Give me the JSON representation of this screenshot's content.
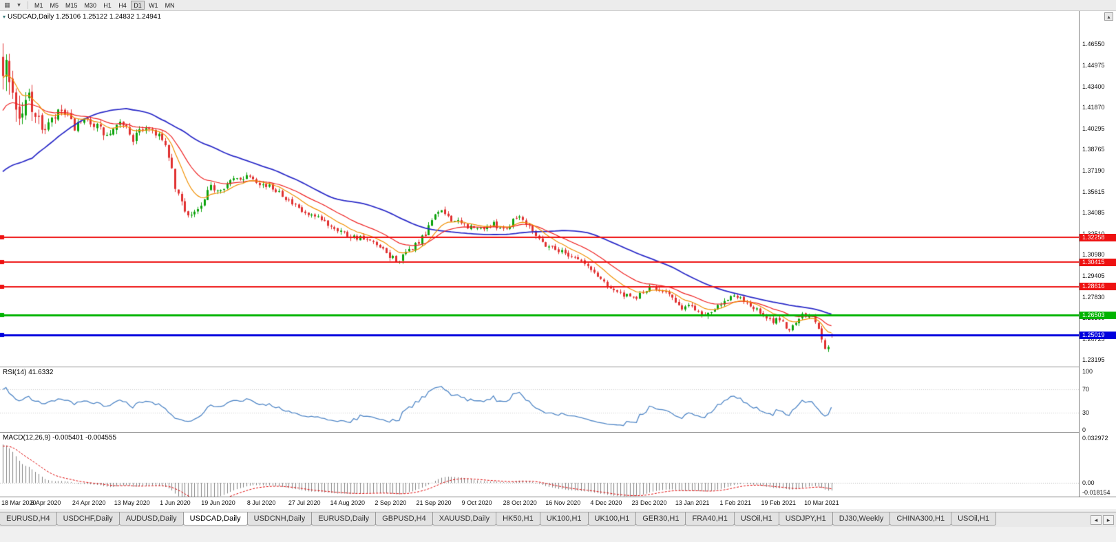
{
  "icons": {
    "chart_type": "▦",
    "dropdown": "▾",
    "scroll_up": "▴",
    "tabs_left": "◂",
    "tabs_right": "▸",
    "title_marker": "▾"
  },
  "toolbar": {
    "timeframes": [
      "M1",
      "M5",
      "M15",
      "M30",
      "H1",
      "H4",
      "D1",
      "W1",
      "MN"
    ],
    "active_timeframe": "D1"
  },
  "chart": {
    "title": {
      "symbol": "USDCAD,Daily",
      "ohlc": "1.25106 1.25122 1.24832 1.24941"
    },
    "rsi_label": "RSI(14) 41.6332",
    "macd_label": "MACD(12,26,9) -0.005401 -0.004555"
  },
  "chart_data": {
    "type": "candlestick",
    "symbol": "USDCAD",
    "timeframe": "Daily",
    "last_quote": {
      "open": 1.25106,
      "high": 1.25122,
      "low": 1.24832,
      "close": 1.24941
    },
    "price_axis_range": [
      1.229,
      1.488
    ],
    "price_axis_ticks": [
      1.4655,
      1.44975,
      1.434,
      1.4187,
      1.40295,
      1.38765,
      1.3719,
      1.35615,
      1.34085,
      1.3251,
      1.3098,
      1.29405,
      1.2783,
      1.263,
      1.24725,
      1.23195
    ],
    "date_axis_ticks": [
      "18 Mar 2020",
      "6 Apr 2020",
      "24 Apr 2020",
      "13 May 2020",
      "1 Jun 2020",
      "19 Jun 2020",
      "8 Jul 2020",
      "27 Jul 2020",
      "14 Aug 2020",
      "2 Sep 2020",
      "21 Sep 2020",
      "9 Oct 2020",
      "28 Oct 2020",
      "16 Nov 2020",
      "4 Dec 2020",
      "23 Dec 2020",
      "13 Jan 2021",
      "1 Feb 2021",
      "19 Feb 2021",
      "10 Mar 2021"
    ],
    "horizontal_lines": [
      {
        "label": "1.32258",
        "value": 1.32258,
        "color": "#ee1111",
        "width": 2
      },
      {
        "label": "1.30415",
        "value": 1.30415,
        "color": "#ee1111",
        "width": 2
      },
      {
        "label": "1.28616",
        "value": 1.28616,
        "color": "#ee1111",
        "width": 2
      },
      {
        "label": "1.26503",
        "value": 1.26503,
        "color": "#00b300",
        "width": 3
      },
      {
        "label": "1.25019",
        "value": 1.25019,
        "color": "#0000dd",
        "width": 3
      }
    ],
    "moving_averages": [
      {
        "type": "sma",
        "period": 50,
        "color": "#2c2cc8",
        "width": 1.8
      },
      {
        "type": "ema",
        "period": 21,
        "color": "#ee2222",
        "width": 1.2
      },
      {
        "type": "ema",
        "period": 10,
        "color": "#f09000",
        "width": 1.2
      }
    ],
    "rsi": {
      "period": 14,
      "value": 41.6332,
      "levels": [
        100,
        70,
        30,
        0
      ],
      "color": "#4f86c6"
    },
    "macd": {
      "fast": 12,
      "slow": 26,
      "signal": 9,
      "values": [
        -0.005401,
        -0.004555
      ],
      "axis_labels": [
        "0.032972",
        "0.00",
        "-0.018154"
      ],
      "hist_color": "#808080",
      "signal_color": "#dd0000"
    },
    "candle_colors": {
      "bull": "#0ca30c",
      "bear": "#e03030"
    },
    "bars_total": 256,
    "prehistory_bars": 40,
    "seed": 7,
    "close_path_anchors": [
      [
        -40,
        1.305,
        0.01
      ],
      [
        -28,
        1.328,
        0.014
      ],
      [
        -16,
        1.381,
        0.026
      ],
      [
        -8,
        1.428,
        0.032
      ],
      [
        -3,
        1.464,
        0.034
      ],
      [
        0,
        1.452,
        0.03
      ],
      [
        2,
        1.443,
        0.028
      ],
      [
        5,
        1.409,
        0.024
      ],
      [
        8,
        1.428,
        0.019
      ],
      [
        11,
        1.407,
        0.014
      ],
      [
        13,
        1.403,
        0.012
      ],
      [
        18,
        1.416,
        0.01
      ],
      [
        22,
        1.404,
        0.009
      ],
      [
        27,
        1.409,
        0.009
      ],
      [
        32,
        1.397,
        0.009
      ],
      [
        37,
        1.4075,
        0.008
      ],
      [
        40,
        1.3955,
        0.008
      ],
      [
        44,
        1.405,
        0.008
      ],
      [
        48,
        1.3985,
        0.007
      ],
      [
        51,
        1.383,
        0.007
      ],
      [
        53,
        1.3585,
        0.008
      ],
      [
        56,
        1.343,
        0.008
      ],
      [
        58,
        1.3395,
        0.007
      ],
      [
        61,
        1.3445,
        0.007
      ],
      [
        64,
        1.36,
        0.007
      ],
      [
        66,
        1.358,
        0.006
      ],
      [
        71,
        1.365,
        0.006
      ],
      [
        76,
        1.369,
        0.006
      ],
      [
        80,
        1.3615,
        0.006
      ],
      [
        85,
        1.357,
        0.005
      ],
      [
        89,
        1.347,
        0.005
      ],
      [
        93,
        1.3395,
        0.005
      ],
      [
        98,
        1.335,
        0.006
      ],
      [
        103,
        1.329,
        0.006
      ],
      [
        106,
        1.3245,
        0.006
      ],
      [
        110,
        1.322,
        0.005
      ],
      [
        114,
        1.318,
        0.005
      ],
      [
        119,
        1.3085,
        0.006
      ],
      [
        122,
        1.3055,
        0.006
      ],
      [
        126,
        1.315,
        0.006
      ],
      [
        130,
        1.3235,
        0.007
      ],
      [
        133,
        1.3415,
        0.007
      ],
      [
        136,
        1.34,
        0.006
      ],
      [
        140,
        1.333,
        0.006
      ],
      [
        146,
        1.3285,
        0.005
      ],
      [
        151,
        1.332,
        0.005
      ],
      [
        155,
        1.329,
        0.005
      ],
      [
        158,
        1.3395,
        0.007
      ],
      [
        162,
        1.332,
        0.006
      ],
      [
        166,
        1.3185,
        0.006
      ],
      [
        172,
        1.312,
        0.005
      ],
      [
        177,
        1.307,
        0.005
      ],
      [
        181,
        1.2985,
        0.005
      ],
      [
        186,
        1.2875,
        0.005
      ],
      [
        190,
        1.2805,
        0.005
      ],
      [
        194,
        1.277,
        0.005
      ],
      [
        199,
        1.285,
        0.005
      ],
      [
        204,
        1.2835,
        0.005
      ],
      [
        208,
        1.2705,
        0.005
      ],
      [
        212,
        1.272,
        0.005
      ],
      [
        216,
        1.2645,
        0.005
      ],
      [
        220,
        1.2735,
        0.006
      ],
      [
        224,
        1.279,
        0.006
      ],
      [
        228,
        1.276,
        0.005
      ],
      [
        232,
        1.2685,
        0.005
      ],
      [
        236,
        1.26,
        0.006
      ],
      [
        239,
        1.2625,
        0.006
      ],
      [
        242,
        1.2535,
        0.007
      ],
      [
        245,
        1.2645,
        0.006
      ],
      [
        249,
        1.264,
        0.005
      ],
      [
        251,
        1.256,
        0.006
      ],
      [
        253,
        1.242,
        0.007
      ],
      [
        254,
        1.24,
        0.007
      ],
      [
        255,
        1.2494,
        0.006
      ]
    ]
  },
  "tabs": {
    "items": [
      "EURUSD,H4",
      "USDCHF,Daily",
      "AUDUSD,Daily",
      "USDCAD,Daily",
      "USDCNH,Daily",
      "EURUSD,Daily",
      "GBPUSD,H4",
      "XAUUSD,Daily",
      "HK50,H1",
      "UK100,H1",
      "UK100,H1",
      "GER30,H1",
      "FRA40,H1",
      "USOil,H1",
      "USDJPY,H1",
      "DJ30,Weekly",
      "CHINA300,H1",
      "USOil,H1"
    ],
    "active_index": 3
  }
}
